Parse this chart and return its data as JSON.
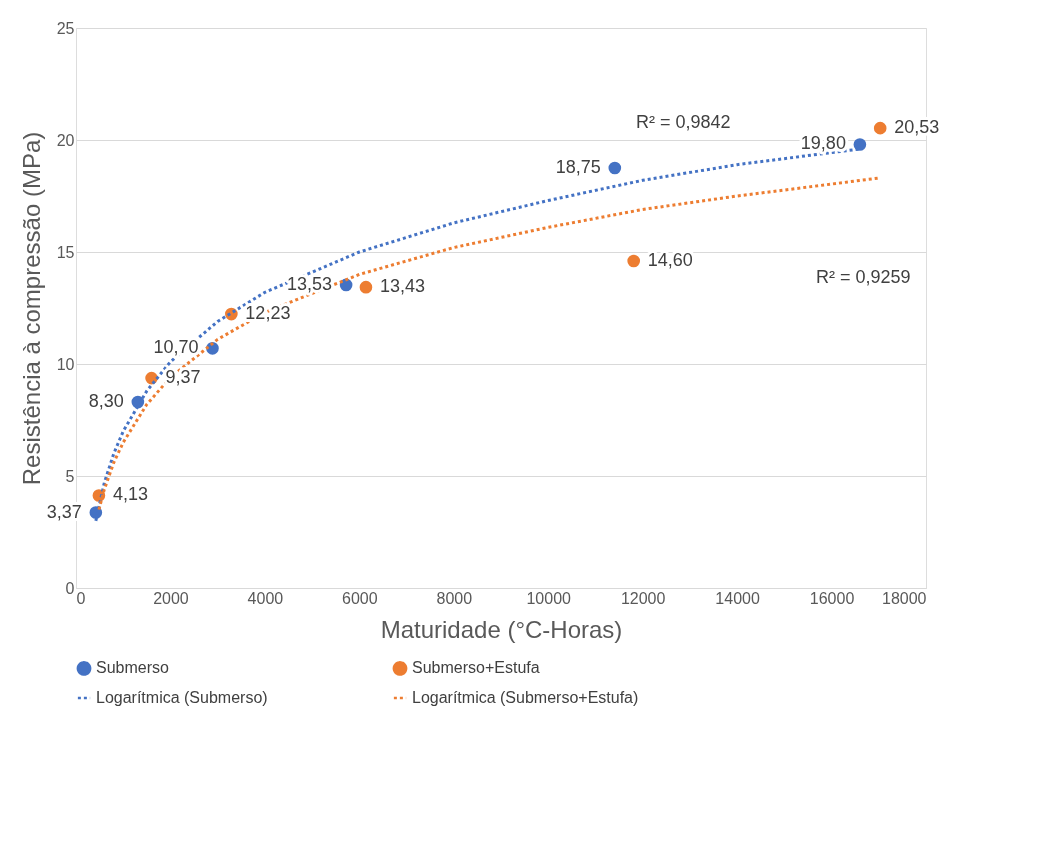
{
  "chart_data": {
    "type": "scatter",
    "xlabel": "Maturidade (°C-Horas)",
    "ylabel": "Resistência à compressão (MPa)",
    "xlim": [
      0,
      18000
    ],
    "xticks": [
      0,
      2000,
      4000,
      6000,
      8000,
      10000,
      12000,
      14000,
      16000,
      18000
    ],
    "ylim": [
      0,
      25
    ],
    "yticks": [
      0,
      5,
      10,
      15,
      20,
      25
    ],
    "grid": "y",
    "legend": "bottom",
    "series": [
      {
        "name": "Submerso",
        "marker": "circle",
        "color": "#4472c4",
        "x": [
          420,
          1310,
          2890,
          5720,
          11410,
          16600
        ],
        "values": [
          3.37,
          8.3,
          10.7,
          13.53,
          18.75,
          19.8
        ],
        "value_labels": [
          "3,37",
          "8,30",
          "10,70",
          "13,53",
          "18,75",
          "19,80"
        ]
      },
      {
        "name": "Submerso+Estufa",
        "marker": "circle",
        "color": "#ed7d31",
        "x": [
          485,
          1600,
          3290,
          6140,
          11810,
          17030
        ],
        "values": [
          4.13,
          9.37,
          12.23,
          13.43,
          14.6,
          20.53
        ],
        "value_labels": [
          "4,13",
          "9,37",
          "12,23",
          "13,43",
          "14,60",
          "20,53"
        ]
      },
      {
        "name": "Logarítmica (Submerso)",
        "type": "line",
        "line_style": "dotted",
        "color": "#4472c4",
        "x": [
          420,
          600,
          800,
          1000,
          1500,
          2000,
          3000,
          4000,
          6000,
          8000,
          10000,
          12000,
          14000,
          16600
        ],
        "values": [
          3.0,
          4.7,
          6.0,
          7.0,
          8.8,
          10.1,
          11.9,
          13.2,
          15.0,
          16.3,
          17.3,
          18.2,
          18.9,
          19.6
        ]
      },
      {
        "name": "Logarítmica (Submerso+Estufa)",
        "type": "line",
        "line_style": "dotted",
        "color": "#ed7d31",
        "x": [
          485,
          600,
          800,
          1000,
          1500,
          2000,
          3000,
          4000,
          6000,
          8000,
          10000,
          12000,
          14000,
          17000
        ],
        "values": [
          3.5,
          4.4,
          5.6,
          6.5,
          8.2,
          9.4,
          11.1,
          12.3,
          14.0,
          15.2,
          16.1,
          16.9,
          17.5,
          18.3
        ]
      }
    ],
    "annotations": [
      "R² = 0,9842",
      "R² = 0,9259"
    ]
  }
}
